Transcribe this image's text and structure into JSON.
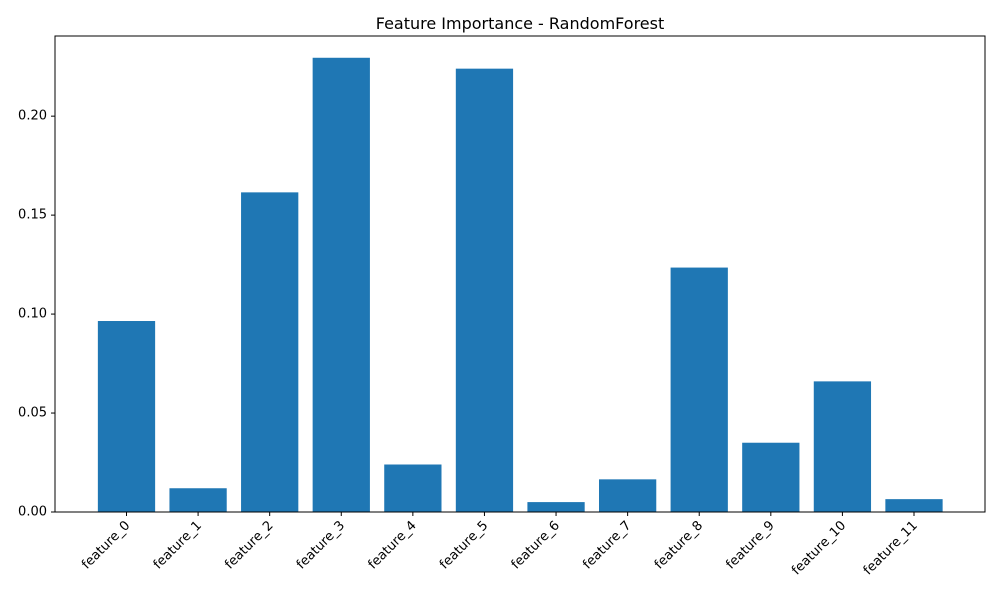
{
  "chart_data": {
    "type": "bar",
    "title": "Feature Importance - RandomForest",
    "xlabel": "",
    "ylabel": "",
    "categories": [
      "feature_0",
      "feature_1",
      "feature_2",
      "feature_3",
      "feature_4",
      "feature_5",
      "feature_6",
      "feature_7",
      "feature_8",
      "feature_9",
      "feature_10",
      "feature_11"
    ],
    "values": [
      0.0965,
      0.012,
      0.1615,
      0.2295,
      0.024,
      0.224,
      0.005,
      0.0165,
      0.1235,
      0.035,
      0.066,
      0.0065
    ],
    "ylim": [
      0.0,
      0.2405
    ],
    "yticks": [
      "0.00",
      "0.05",
      "0.10",
      "0.15",
      "0.20"
    ],
    "ytick_values": [
      0.0,
      0.05,
      0.1,
      0.15,
      0.2
    ],
    "grid": false,
    "legend": "none",
    "bar_color": "#1f77b4",
    "x_tick_rotation": "45 degrees"
  }
}
